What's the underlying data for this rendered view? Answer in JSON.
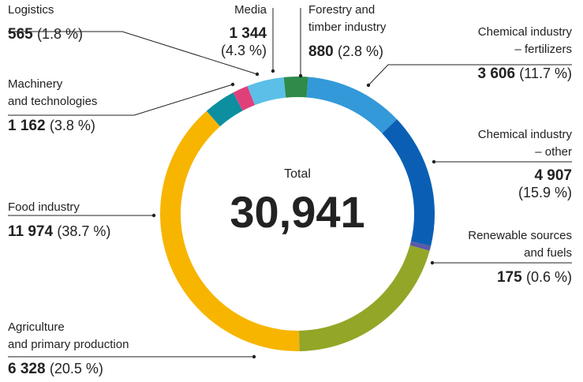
{
  "chart_data": {
    "type": "donut",
    "categories": [
      "Forestry and\ntimber industry",
      "Chemical industry\n– fertilizers",
      "Chemical industry\n– other",
      "Renewable sources\nand fuels",
      "Agriculture\nand primary production",
      "Food industry",
      "Machinery\nand technologies",
      "Logistics",
      "Media"
    ],
    "values": [
      880,
      3606,
      4907,
      175,
      6328,
      11974,
      1162,
      565,
      1344
    ],
    "value_labels": [
      "880",
      "3 606",
      "4 907",
      "175",
      "6 328",
      "11 974",
      "1 162",
      "565",
      "1 344"
    ],
    "percentages": [
      2.8,
      11.7,
      15.9,
      0.6,
      20.5,
      38.7,
      3.8,
      1.8,
      4.3
    ],
    "percentage_labels": [
      "(2.8 %)",
      "(11.7 %)",
      "(15.9 %)",
      "(0.6 %)",
      "(20.5 %)",
      "(38.7 %)",
      "(3.8 %)",
      "(1.8 %)",
      "(4.3 %)"
    ],
    "colors": [
      "#2e8b4a",
      "#3399d8",
      "#0a5fb4",
      "#5a5aa8",
      "#93a628",
      "#f7b500",
      "#0d8fa0",
      "#e0407a",
      "#5bbfe8"
    ],
    "total": {
      "label": "Total",
      "value": 30941,
      "value_label": "30,941"
    }
  }
}
